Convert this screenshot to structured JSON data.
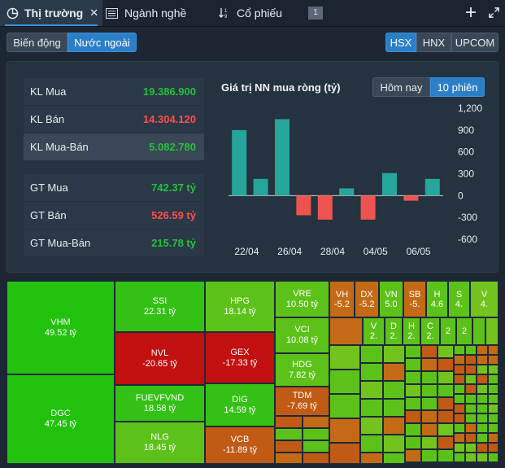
{
  "tabs": [
    {
      "label": "Thị trường",
      "icon": "pie-chart-icon",
      "close": "✕"
    },
    {
      "label": "Ngành nghề",
      "icon": "list-icon"
    },
    {
      "label": "Cổ phiếu",
      "icon": "sort-icon"
    }
  ],
  "tab_badge": "1",
  "view_toggle": [
    "Biến động",
    "Nước ngoài"
  ],
  "exchanges": [
    "HSX",
    "HNX",
    "UPCOM"
  ],
  "stats": [
    {
      "label": "KL Mua",
      "value": "19.386.900",
      "color": "green"
    },
    {
      "label": "KL Bán",
      "value": "14.304.120",
      "color": "red"
    },
    {
      "label": "KL Mua-Bán",
      "value": "5.082.780",
      "color": "green"
    },
    {
      "label": "GT Mua",
      "value": "742.37 tỷ",
      "color": "green"
    },
    {
      "label": "GT Bán",
      "value": "526.59 tỷ",
      "color": "red"
    },
    {
      "label": "GT Mua-Bán",
      "value": "215.78 tỷ",
      "color": "green"
    }
  ],
  "period_toggle": [
    "Hôm nay",
    "10 phiên"
  ],
  "chart_data": {
    "type": "bar",
    "title": "Giá trị NN mua ròng (tỷ)",
    "x_labels": [
      "22/04",
      "26/04",
      "28/04",
      "04/05",
      "06/05"
    ],
    "values": [
      900,
      230,
      1050,
      -270,
      -330,
      100,
      -330,
      310,
      -70,
      230
    ],
    "yticks": [
      1200,
      900,
      600,
      300,
      0,
      -300,
      -600
    ],
    "ytick_labels": [
      "1,200",
      "900",
      "600",
      "300",
      "0",
      "-300",
      "-600"
    ],
    "ylim": [
      -600,
      1200
    ],
    "colors": {
      "positive": "#26a69a",
      "negative": "#ef5350"
    }
  },
  "treemap": {
    "big": [
      {
        "ticker": "VHM",
        "value": "49.52 tỷ"
      },
      {
        "ticker": "DGC",
        "value": "47.45 tỷ"
      },
      {
        "ticker": "SSI",
        "value": "22.31 tỷ"
      },
      {
        "ticker": "NVL",
        "value": "-20.65 tỷ"
      },
      {
        "ticker": "FUEVFVND",
        "value": "18.58 tỷ"
      },
      {
        "ticker": "NLG",
        "value": "18.45 tỷ"
      },
      {
        "ticker": "HPG",
        "value": "18.14 tỷ"
      },
      {
        "ticker": "GEX",
        "value": "-17.33 tỷ"
      },
      {
        "ticker": "DIG",
        "value": "14.59 tỷ"
      },
      {
        "ticker": "VCB",
        "value": "-11.89 tỷ"
      },
      {
        "ticker": "VRE",
        "value": "10.50 tỷ"
      },
      {
        "ticker": "VCI",
        "value": "10.08 tỷ"
      },
      {
        "ticker": "HDG",
        "value": "7.82 tỷ"
      },
      {
        "ticker": "TDM",
        "value": "-7.69 tỷ"
      }
    ],
    "small": [
      {
        "ticker": "VH",
        "value": "-5.2"
      },
      {
        "ticker": "DX",
        "value": "-5.2"
      },
      {
        "ticker": "VN",
        "value": "5.0"
      },
      {
        "ticker": "SB",
        "value": "-5."
      },
      {
        "ticker": "H",
        "value": "4.6"
      },
      {
        "ticker": "S",
        "value": "4."
      },
      {
        "ticker": "V",
        "value": "4."
      },
      {
        "ticker": "V",
        "value": "2."
      },
      {
        "ticker": "D",
        "value": "2."
      },
      {
        "ticker": "H",
        "value": "2."
      },
      {
        "ticker": "C",
        "value": "2."
      },
      {
        "ticker": "",
        "value": "2"
      },
      {
        "ticker": "",
        "value": "2"
      }
    ]
  },
  "colors": {
    "up": "#3cc21a",
    "up_strong": "#27c21a",
    "down": "#c41111",
    "down_mid": "#c4581a"
  }
}
